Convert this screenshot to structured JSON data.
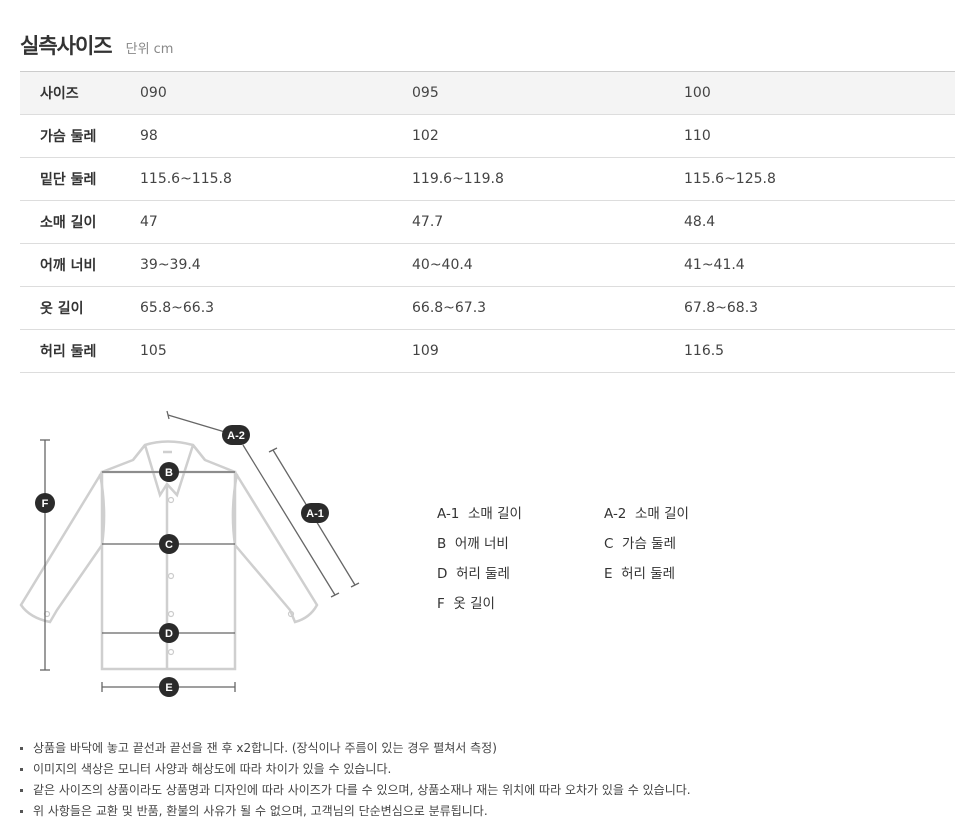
{
  "title": "실측사이즈",
  "unit": "단위 cm",
  "table": {
    "rows": [
      {
        "label": "사이즈",
        "values": [
          "090",
          "095",
          "100"
        ]
      },
      {
        "label": "가슴 둘레",
        "values": [
          "98",
          "102",
          "110"
        ]
      },
      {
        "label": "밑단 둘레",
        "values": [
          "115.6~115.8",
          "119.6~119.8",
          "115.6~125.8"
        ]
      },
      {
        "label": "소매 길이",
        "values": [
          "47",
          "47.7",
          "48.4"
        ]
      },
      {
        "label": "어깨 너비",
        "values": [
          "39~39.4",
          "40~40.4",
          "41~41.4"
        ]
      },
      {
        "label": "옷 길이",
        "values": [
          "65.8~66.3",
          "66.8~67.3",
          "67.8~68.3"
        ]
      },
      {
        "label": "허리 둘레",
        "values": [
          "105",
          "109",
          "116.5"
        ]
      }
    ]
  },
  "diagram": {
    "markers": [
      "A-1",
      "A-2",
      "B",
      "C",
      "D",
      "E",
      "F"
    ]
  },
  "legend": [
    {
      "key": "A-1",
      "text": "소매 길이"
    },
    {
      "key": "A-2",
      "text": "소매 길이"
    },
    {
      "key": "B",
      "text": "어깨 너비"
    },
    {
      "key": "C",
      "text": "가슴 둘레"
    },
    {
      "key": "D",
      "text": "허리 둘레"
    },
    {
      "key": "E",
      "text": "허리 둘레"
    },
    {
      "key": "F",
      "text": "옷 길이"
    }
  ],
  "notes": [
    "상품을 바닥에 놓고 끝선과 끝선을 잰 후 x2합니다. (장식이나 주름이 있는 경우 펼쳐서 측정)",
    "이미지의 색상은 모니터 사양과 해상도에 따라 차이가 있을 수 있습니다.",
    "같은 사이즈의 상품이라도 상품명과 디자인에 따라 사이즈가 다를 수 있으며, 상품소재나 재는 위치에 따라 오차가 있을 수 있습니다.",
    "위 사항들은 교환 및 반품, 환불의 사유가 될 수 없으며, 고객님의 단순변심으로 분류됩니다."
  ]
}
